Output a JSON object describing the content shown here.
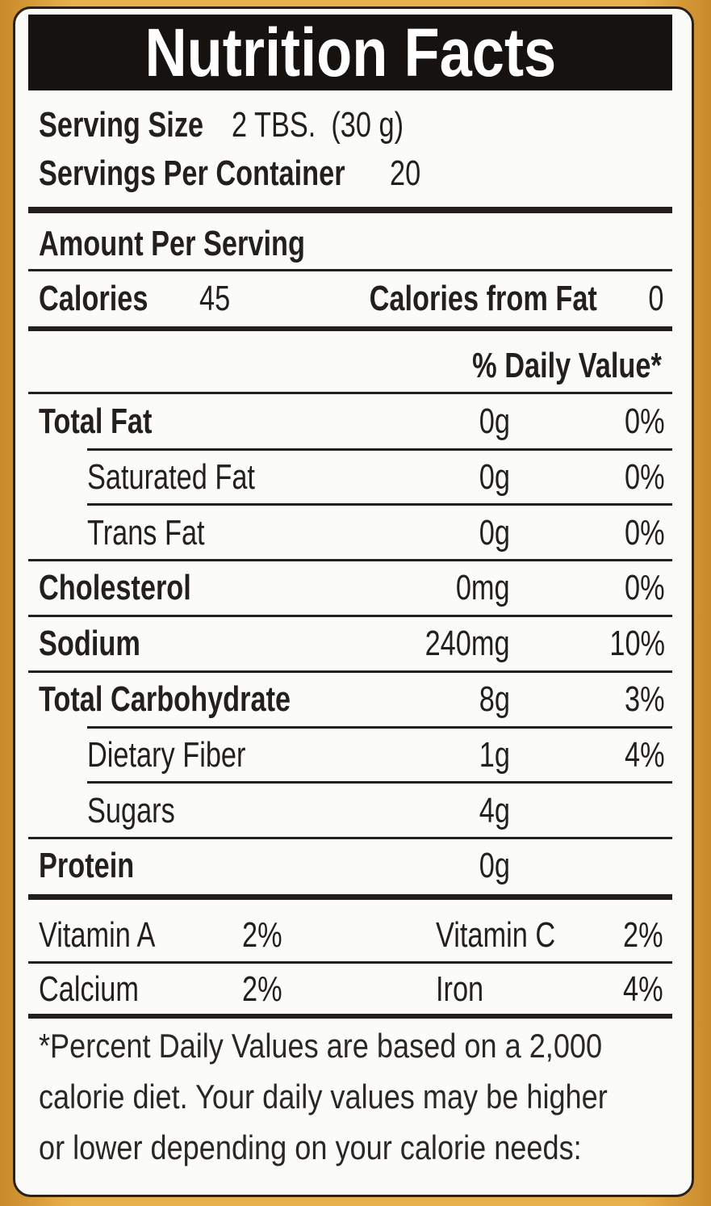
{
  "title": "Nutrition Facts",
  "serving": {
    "size_label": "Serving Size",
    "size_value": "2 TBS.  (30 g)",
    "per_container_label": "Servings Per Container",
    "per_container_value": "20"
  },
  "amount_per_serving": "Amount Per Serving",
  "calories": {
    "label": "Calories",
    "value": "45",
    "fat_label": "Calories from Fat",
    "fat_value": "0"
  },
  "daily_value_header": "% Daily Value*",
  "nutrients": [
    {
      "name": "Total Fat",
      "amount": "0g",
      "dv": "0%",
      "sub": [
        {
          "name": "Saturated Fat",
          "amount": "0g",
          "dv": "0%"
        },
        {
          "name": "Trans Fat",
          "amount": "0g",
          "dv": "0%"
        }
      ]
    },
    {
      "name": "Cholesterol",
      "amount": "0mg",
      "dv": "0%"
    },
    {
      "name": "Sodium",
      "amount": "240mg",
      "dv": "10%"
    },
    {
      "name": "Total Carbohydrate",
      "amount": "8g",
      "dv": "3%",
      "sub": [
        {
          "name": "Dietary Fiber",
          "amount": "1g",
          "dv": "4%"
        },
        {
          "name": "Sugars",
          "amount": "4g"
        }
      ]
    },
    {
      "name": "Protein",
      "amount": "0g"
    }
  ],
  "vitamins": [
    {
      "name1": "Vitamin A",
      "value1": "2%",
      "name2": "Vitamin C",
      "value2": "2%"
    },
    {
      "name1": "Calcium",
      "value1": "2%",
      "name2": "Iron",
      "value2": "4%"
    }
  ],
  "footnote": [
    "*Percent Daily Values are based on a 2,000",
    "calorie diet. Your daily values may be higher",
    "or lower depending on your calorie needs:"
  ]
}
